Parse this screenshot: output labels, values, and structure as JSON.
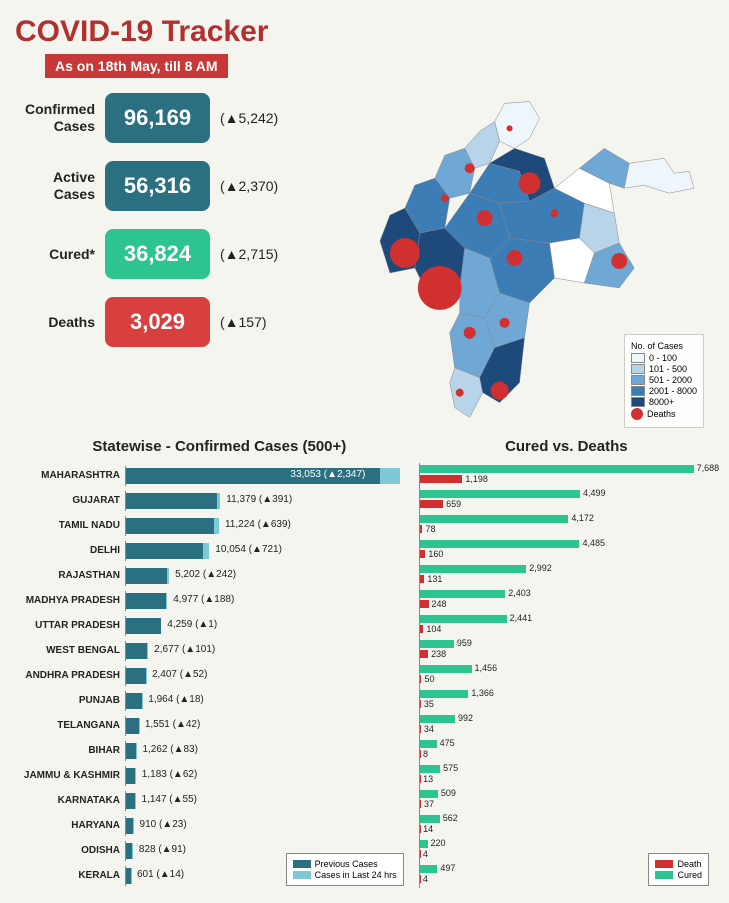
{
  "title": "COVID-19 Tracker",
  "subtitle": "As on 18th May, till 8 AM",
  "stats": [
    {
      "label": "Confirmed Cases",
      "value": "96,169",
      "delta": "5,242",
      "color": "#2a7080"
    },
    {
      "label": "Active Cases",
      "value": "56,316",
      "delta": "2,370",
      "color": "#2a7080"
    },
    {
      "label": "Cured*",
      "value": "36,824",
      "delta": "2,715",
      "color": "#2ec492"
    },
    {
      "label": "Deaths",
      "value": "3,029",
      "delta": "157",
      "color": "#d84040"
    }
  ],
  "map": {
    "legend_title": "No. of Cases",
    "ranges": [
      {
        "label": "0 - 100",
        "color": "#eef5fb"
      },
      {
        "label": "101 - 500",
        "color": "#b8d4e8"
      },
      {
        "label": "501 - 2000",
        "color": "#6fa8d4"
      },
      {
        "label": "2001 - 8000",
        "color": "#3d7db5"
      },
      {
        "label": "8000+",
        "color": "#1d4a7a"
      }
    ],
    "deaths_label": "Deaths",
    "deaths_color": "#d03030"
  },
  "statewise": {
    "title": "Statewise - Confirmed Cases (500+)",
    "prev_color": "#2a7080",
    "new_color": "#7fc8d8",
    "prev_label": "Previous Cases",
    "new_label": "Cases in Last 24 hrs",
    "max": 35000,
    "states": [
      {
        "name": "MAHARASHTRA",
        "total": 33053,
        "new": 2347
      },
      {
        "name": "GUJARAT",
        "total": 11379,
        "new": 391
      },
      {
        "name": "TAMIL NADU",
        "total": 11224,
        "new": 639
      },
      {
        "name": "DELHI",
        "total": 10054,
        "new": 721
      },
      {
        "name": "RAJASTHAN",
        "total": 5202,
        "new": 242
      },
      {
        "name": "MADHYA PRADESH",
        "total": 4977,
        "new": 188
      },
      {
        "name": "UTTAR PRADESH",
        "total": 4259,
        "new": 1
      },
      {
        "name": "WEST BENGAL",
        "total": 2677,
        "new": 101
      },
      {
        "name": "ANDHRA PRADESH",
        "total": 2407,
        "new": 52
      },
      {
        "name": "PUNJAB",
        "total": 1964,
        "new": 18
      },
      {
        "name": "TELANGANA",
        "total": 1551,
        "new": 42
      },
      {
        "name": "BIHAR",
        "total": 1262,
        "new": 83
      },
      {
        "name": "JAMMU & KASHMIR",
        "total": 1183,
        "new": 62
      },
      {
        "name": "KARNATAKA",
        "total": 1147,
        "new": 55
      },
      {
        "name": "HARYANA",
        "total": 910,
        "new": 23
      },
      {
        "name": "ODISHA",
        "total": 828,
        "new": 91
      },
      {
        "name": "KERALA",
        "total": 601,
        "new": 14
      }
    ]
  },
  "cured_deaths": {
    "title": "Cured vs. Deaths",
    "cured_color": "#2ec492",
    "death_color": "#d03030",
    "death_label": "Death",
    "cured_label": "Cured",
    "max": 8000,
    "rows": [
      {
        "cured": 7688,
        "death": 1198
      },
      {
        "cured": 4499,
        "death": 659
      },
      {
        "cured": 4172,
        "death": 78
      },
      {
        "cured": 4485,
        "death": 160
      },
      {
        "cured": 2992,
        "death": 131
      },
      {
        "cured": 2403,
        "death": 248
      },
      {
        "cured": 2441,
        "death": 104
      },
      {
        "cured": 959,
        "death": 238
      },
      {
        "cured": 1456,
        "death": 50
      },
      {
        "cured": 1366,
        "death": 35
      },
      {
        "cured": 992,
        "death": 34
      },
      {
        "cured": 475,
        "death": 8
      },
      {
        "cured": 575,
        "death": 13
      },
      {
        "cured": 509,
        "death": 37
      },
      {
        "cured": 562,
        "death": 14
      },
      {
        "cured": 220,
        "death": 4
      },
      {
        "cured": 497,
        "death": 4
      }
    ]
  }
}
